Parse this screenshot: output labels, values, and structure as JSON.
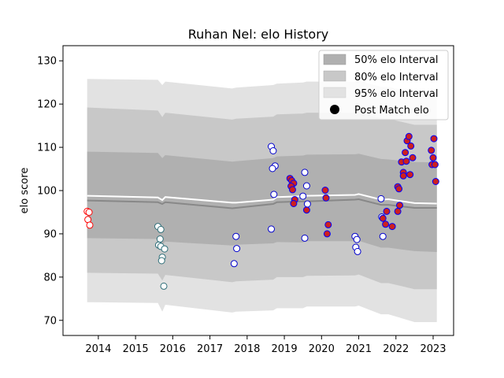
{
  "chart_data": {
    "type": "scatter",
    "title": "Ruhan Nel: elo History",
    "xlabel": "",
    "ylabel": "elo score",
    "xlim": [
      2013.05,
      2023.55
    ],
    "ylim": [
      66.5,
      133.5
    ],
    "xticks": [
      2014,
      2015,
      2016,
      2017,
      2018,
      2019,
      2020,
      2021,
      2022,
      2023
    ],
    "yticks": [
      70,
      80,
      90,
      100,
      110,
      120,
      130
    ],
    "grid": false,
    "legend_position": "top-right",
    "legend": [
      {
        "label": "50% elo Interval",
        "kind": "band",
        "color": "#b0b0b0"
      },
      {
        "label": "80% elo Interval",
        "kind": "band",
        "color": "#c8c8c8"
      },
      {
        "label": "95% elo Interval",
        "kind": "band",
        "color": "#e2e2e2"
      },
      {
        "label": "Post Match elo",
        "kind": "marker",
        "color": "#000000"
      }
    ],
    "colors": {
      "band95": "#e2e2e2",
      "band80": "#c8c8c8",
      "band50": "#b0b0b0",
      "mean_line": "#888888",
      "upper_line": "#ffffff"
    },
    "bands": {
      "x": [
        2013.7,
        2015.6,
        2015.72,
        2015.8,
        2017.6,
        2017.7,
        2018.7,
        2018.8,
        2019.5,
        2019.6,
        2020.9,
        2021.0,
        2021.6,
        2021.8,
        2022.5,
        2023.1
      ],
      "mean": [
        97.7,
        97.3,
        96.9,
        97.3,
        95.9,
        96.0,
        96.9,
        97.3,
        97.5,
        97.5,
        97.9,
        98.0,
        96.7,
        96.7,
        96.0,
        96.0
      ],
      "upper": [
        98.8,
        98.4,
        97.8,
        98.5,
        97.2,
        97.2,
        97.9,
        98.5,
        98.7,
        98.8,
        99.0,
        99.2,
        97.9,
        98.0,
        97.1,
        97.0
      ],
      "band50_lo": [
        89.0,
        88.8,
        87.5,
        88.2,
        87.3,
        87.5,
        87.8,
        88.1,
        88.0,
        88.3,
        88.3,
        88.4,
        86.8,
        86.8,
        86.0,
        85.8
      ],
      "band50_hi": [
        109.0,
        108.7,
        107.5,
        108.2,
        106.7,
        106.8,
        107.5,
        107.9,
        108.1,
        108.3,
        108.4,
        108.5,
        107.3,
        107.2,
        106.6,
        106.5
      ],
      "band80_lo": [
        81.0,
        80.8,
        79.2,
        80.5,
        78.8,
        79.0,
        79.4,
        80.0,
        80.0,
        80.3,
        80.4,
        80.6,
        78.6,
        78.6,
        77.2,
        77.2
      ],
      "band80_hi": [
        119.2,
        118.5,
        117.0,
        118.0,
        116.4,
        116.6,
        117.1,
        117.6,
        117.8,
        118.0,
        118.0,
        118.1,
        116.7,
        116.6,
        115.2,
        115.2
      ],
      "band95_lo": [
        74.2,
        74.0,
        72.0,
        73.6,
        71.8,
        72.0,
        72.3,
        72.8,
        72.8,
        73.2,
        73.2,
        73.4,
        71.4,
        71.4,
        69.6,
        69.6
      ],
      "band95_hi": [
        125.8,
        125.6,
        124.4,
        125.2,
        123.6,
        123.8,
        124.4,
        124.7,
        125.0,
        125.2,
        125.2,
        125.4,
        124.0,
        124.0,
        122.6,
        122.6
      ]
    },
    "series": [
      {
        "name": "",
        "face_color": "#ffffff",
        "edge_color": "#ff0000",
        "x": [
          2013.7,
          2013.75,
          2013.72,
          2013.77
        ],
        "y": [
          95.2,
          95.0,
          93.3,
          92.0
        ]
      },
      {
        "name": "",
        "face_color": "#ffffff",
        "edge_color": "#2e6e78",
        "x": [
          2015.6,
          2015.68,
          2015.62,
          2015.66,
          2015.68,
          2015.78,
          2015.72,
          2015.7,
          2015.76
        ],
        "y": [
          91.7,
          91.0,
          87.4,
          88.8,
          87.1,
          86.5,
          84.6,
          83.8,
          77.9
        ]
      },
      {
        "name": "",
        "face_color": "#ffffff",
        "edge_color": "#0000cc",
        "x": [
          2017.7,
          2017.72,
          2017.65,
          2018.65,
          2018.7,
          2018.75,
          2018.68,
          2018.72,
          2018.65,
          2019.55,
          2019.5,
          2019.6,
          2019.62,
          2019.55,
          2020.9,
          2020.95,
          2020.92,
          2020.97,
          2021.6,
          2021.62,
          2021.65
        ],
        "y": [
          89.4,
          86.6,
          83.1,
          110.2,
          109.2,
          105.7,
          105.1,
          99.1,
          91.1,
          104.2,
          98.7,
          101.1,
          96.9,
          89.0,
          89.4,
          88.7,
          86.9,
          85.9,
          98.1,
          93.9,
          89.4
        ]
      },
      {
        "name": "",
        "face_color": "#cc2020",
        "edge_color": "#0000ff",
        "x": [
          2019.15,
          2019.2,
          2019.25,
          2019.18,
          2019.22,
          2019.28,
          2019.25,
          2019.6,
          2020.1,
          2020.12,
          2020.18,
          2020.15,
          2021.65,
          2021.75,
          2021.72,
          2021.9,
          2022.05,
          2022.1,
          2022.05,
          2022.08,
          2022.15,
          2022.2,
          2022.25,
          2022.3,
          2022.35,
          2022.4,
          2022.45,
          2022.38,
          2022.2,
          2022.28,
          2022.95,
          2023.0,
          2023.02,
          2022.97,
          2023.05,
          2023.07
        ],
        "y": [
          102.8,
          102.3,
          101.7,
          101.0,
          100.2,
          97.9,
          97.0,
          95.5,
          100.1,
          98.3,
          92.1,
          90.0,
          93.6,
          95.2,
          92.2,
          91.7,
          95.2,
          96.6,
          100.9,
          100.4,
          106.6,
          104.2,
          108.8,
          111.5,
          112.5,
          110.3,
          107.6,
          103.7,
          103.4,
          106.8,
          109.3,
          107.6,
          112.0,
          106.0,
          106.0,
          102.1
        ]
      }
    ]
  }
}
